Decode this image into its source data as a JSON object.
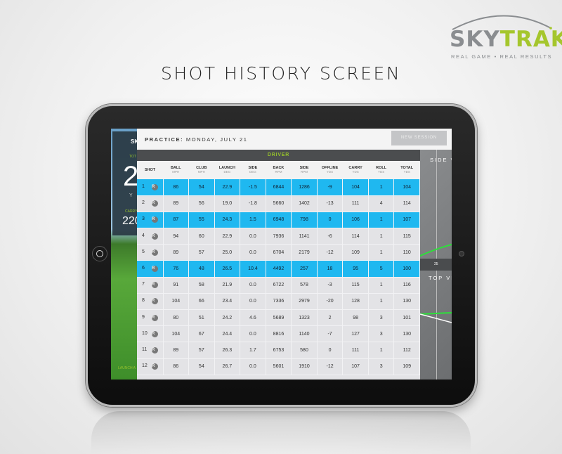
{
  "brand": {
    "logo_word_1": "SKY",
    "logo_word_2": "TRAK",
    "tagline": "REAL GAME  •  REAL RESULTS",
    "trademark": "™"
  },
  "page_title": "SHOT HISTORY SCREEN",
  "colors": {
    "accent_blue": "#1fb8f0",
    "accent_green": "#96c22b",
    "driver_bar": "#4b4d4f"
  },
  "left_panel": {
    "brand_partial": "SK",
    "total_label": "TOT",
    "total_value": "2",
    "unit": "Y",
    "carry_label": "CARRY",
    "carry_value": "220",
    "launch_label": "LAUNCH A"
  },
  "header": {
    "practice_label": "PRACTICE:",
    "practice_date": "MONDAY, JULY 21",
    "new_session": "NEW SESSION"
  },
  "club": "DRIVER",
  "columns": [
    {
      "label": "SHOT",
      "unit": ""
    },
    {
      "label": "BALL",
      "unit": "MPH"
    },
    {
      "label": "CLUB",
      "unit": "MPH"
    },
    {
      "label": "LAUNCH",
      "unit": "DEG"
    },
    {
      "label": "SIDE",
      "unit": "DEG"
    },
    {
      "label": "BACK",
      "unit": "RPM"
    },
    {
      "label": "SIDE",
      "unit": "RPM"
    },
    {
      "label": "OFFLINE",
      "unit": "YDS"
    },
    {
      "label": "CARRY",
      "unit": "YDS"
    },
    {
      "label": "ROLL",
      "unit": "YDS"
    },
    {
      "label": "TOTAL",
      "unit": "YDS"
    }
  ],
  "shot_icon": "R",
  "rows": [
    {
      "shot": "1",
      "highlight": true,
      "v": [
        "86",
        "54",
        "22.9",
        "-1.5",
        "6844",
        "1286",
        "-9",
        "104",
        "1",
        "104"
      ]
    },
    {
      "shot": "2",
      "highlight": false,
      "v": [
        "89",
        "56",
        "19.0",
        "-1.8",
        "5660",
        "1402",
        "-13",
        "111",
        "4",
        "114"
      ]
    },
    {
      "shot": "3",
      "highlight": true,
      "v": [
        "87",
        "55",
        "24.3",
        "1.5",
        "6948",
        "798",
        "0",
        "106",
        "1",
        "107"
      ]
    },
    {
      "shot": "4",
      "highlight": false,
      "v": [
        "94",
        "60",
        "22.9",
        "0.0",
        "7936",
        "1141",
        "-6",
        "114",
        "1",
        "115"
      ]
    },
    {
      "shot": "5",
      "highlight": false,
      "v": [
        "89",
        "57",
        "25.0",
        "0.0",
        "6704",
        "2179",
        "-12",
        "109",
        "1",
        "110"
      ]
    },
    {
      "shot": "6",
      "highlight": true,
      "v": [
        "76",
        "48",
        "26.5",
        "10.4",
        "4492",
        "257",
        "18",
        "95",
        "5",
        "100"
      ]
    },
    {
      "shot": "7",
      "highlight": false,
      "v": [
        "91",
        "58",
        "21.9",
        "0.0",
        "6722",
        "578",
        "-3",
        "115",
        "1",
        "116"
      ]
    },
    {
      "shot": "8",
      "highlight": false,
      "v": [
        "104",
        "66",
        "23.4",
        "0.0",
        "7336",
        "2979",
        "-20",
        "128",
        "1",
        "130"
      ]
    },
    {
      "shot": "9",
      "highlight": false,
      "v": [
        "80",
        "51",
        "24.2",
        "4.6",
        "5689",
        "1323",
        "2",
        "98",
        "3",
        "101"
      ]
    },
    {
      "shot": "10",
      "highlight": false,
      "v": [
        "104",
        "67",
        "24.4",
        "0.0",
        "8816",
        "1140",
        "-7",
        "127",
        "3",
        "130"
      ]
    },
    {
      "shot": "11",
      "highlight": false,
      "v": [
        "89",
        "57",
        "26.3",
        "1.7",
        "6753",
        "580",
        "0",
        "111",
        "1",
        "112"
      ]
    },
    {
      "shot": "12",
      "highlight": false,
      "v": [
        "86",
        "54",
        "26.7",
        "0.0",
        "5601",
        "1910",
        "-12",
        "107",
        "3",
        "109"
      ]
    }
  ],
  "right_panel": {
    "side_view": "SIDE VI",
    "top_view": "TOP VI",
    "scale_mark": "25"
  }
}
